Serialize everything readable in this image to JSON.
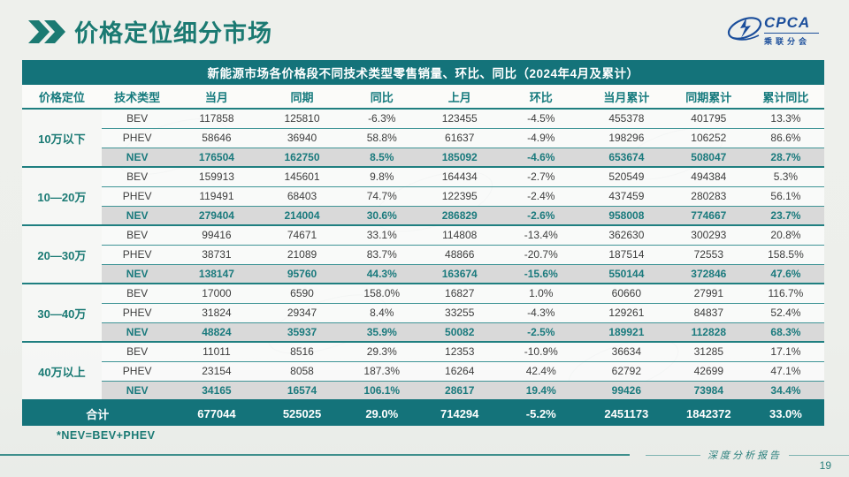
{
  "page": {
    "title": "价格定位细分市场",
    "footnote": "*NEV=BEV+PHEV",
    "footer_label": "深度分析报告",
    "page_number": "19"
  },
  "logo": {
    "brand": "CPCA",
    "brand_sub": "乘联分会"
  },
  "colors": {
    "teal_band": "#14737a",
    "teal_text": "#1a7a74",
    "nev_row_bg": "#d9d9d9",
    "logo_blue": "#1b4e9b"
  },
  "table": {
    "title": "新能源市场各价格段不同技术类型零售销量、环比、同比（2024年4月及累计）",
    "columns": [
      "价格定位",
      "技术类型",
      "当月",
      "同期",
      "同比",
      "上月",
      "环比",
      "当月累计",
      "同期累计",
      "累计同比"
    ],
    "groups": [
      {
        "label": "10万以下",
        "rows": [
          {
            "type": "BEV",
            "values": [
              "117858",
              "125810",
              "-6.3%",
              "123455",
              "-4.5%",
              "455378",
              "401795",
              "13.3%"
            ]
          },
          {
            "type": "PHEV",
            "values": [
              "58646",
              "36940",
              "58.8%",
              "61637",
              "-4.9%",
              "198296",
              "106252",
              "86.6%"
            ]
          },
          {
            "type": "NEV",
            "values": [
              "176504",
              "162750",
              "8.5%",
              "185092",
              "-4.6%",
              "653674",
              "508047",
              "28.7%"
            ]
          }
        ]
      },
      {
        "label": "10—20万",
        "rows": [
          {
            "type": "BEV",
            "values": [
              "159913",
              "145601",
              "9.8%",
              "164434",
              "-2.7%",
              "520549",
              "494384",
              "5.3%"
            ]
          },
          {
            "type": "PHEV",
            "values": [
              "119491",
              "68403",
              "74.7%",
              "122395",
              "-2.4%",
              "437459",
              "280283",
              "56.1%"
            ]
          },
          {
            "type": "NEV",
            "values": [
              "279404",
              "214004",
              "30.6%",
              "286829",
              "-2.6%",
              "958008",
              "774667",
              "23.7%"
            ]
          }
        ]
      },
      {
        "label": "20—30万",
        "rows": [
          {
            "type": "BEV",
            "values": [
              "99416",
              "74671",
              "33.1%",
              "114808",
              "-13.4%",
              "362630",
              "300293",
              "20.8%"
            ]
          },
          {
            "type": "PHEV",
            "values": [
              "38731",
              "21089",
              "83.7%",
              "48866",
              "-20.7%",
              "187514",
              "72553",
              "158.5%"
            ]
          },
          {
            "type": "NEV",
            "values": [
              "138147",
              "95760",
              "44.3%",
              "163674",
              "-15.6%",
              "550144",
              "372846",
              "47.6%"
            ]
          }
        ]
      },
      {
        "label": "30—40万",
        "rows": [
          {
            "type": "BEV",
            "values": [
              "17000",
              "6590",
              "158.0%",
              "16827",
              "1.0%",
              "60660",
              "27991",
              "116.7%"
            ]
          },
          {
            "type": "PHEV",
            "values": [
              "31824",
              "29347",
              "8.4%",
              "33255",
              "-4.3%",
              "129261",
              "84837",
              "52.4%"
            ]
          },
          {
            "type": "NEV",
            "values": [
              "48824",
              "35937",
              "35.9%",
              "50082",
              "-2.5%",
              "189921",
              "112828",
              "68.3%"
            ]
          }
        ]
      },
      {
        "label": "40万以上",
        "rows": [
          {
            "type": "BEV",
            "values": [
              "11011",
              "8516",
              "29.3%",
              "12353",
              "-10.9%",
              "36634",
              "31285",
              "17.1%"
            ]
          },
          {
            "type": "PHEV",
            "values": [
              "23154",
              "8058",
              "187.3%",
              "16264",
              "42.4%",
              "62792",
              "42699",
              "47.1%"
            ]
          },
          {
            "type": "NEV",
            "values": [
              "34165",
              "16574",
              "106.1%",
              "28617",
              "19.4%",
              "99426",
              "73984",
              "34.4%"
            ]
          }
        ]
      }
    ],
    "total": {
      "label": "合计",
      "values": [
        "677044",
        "525025",
        "29.0%",
        "714294",
        "-5.2%",
        "2451173",
        "1842372",
        "33.0%"
      ]
    }
  }
}
